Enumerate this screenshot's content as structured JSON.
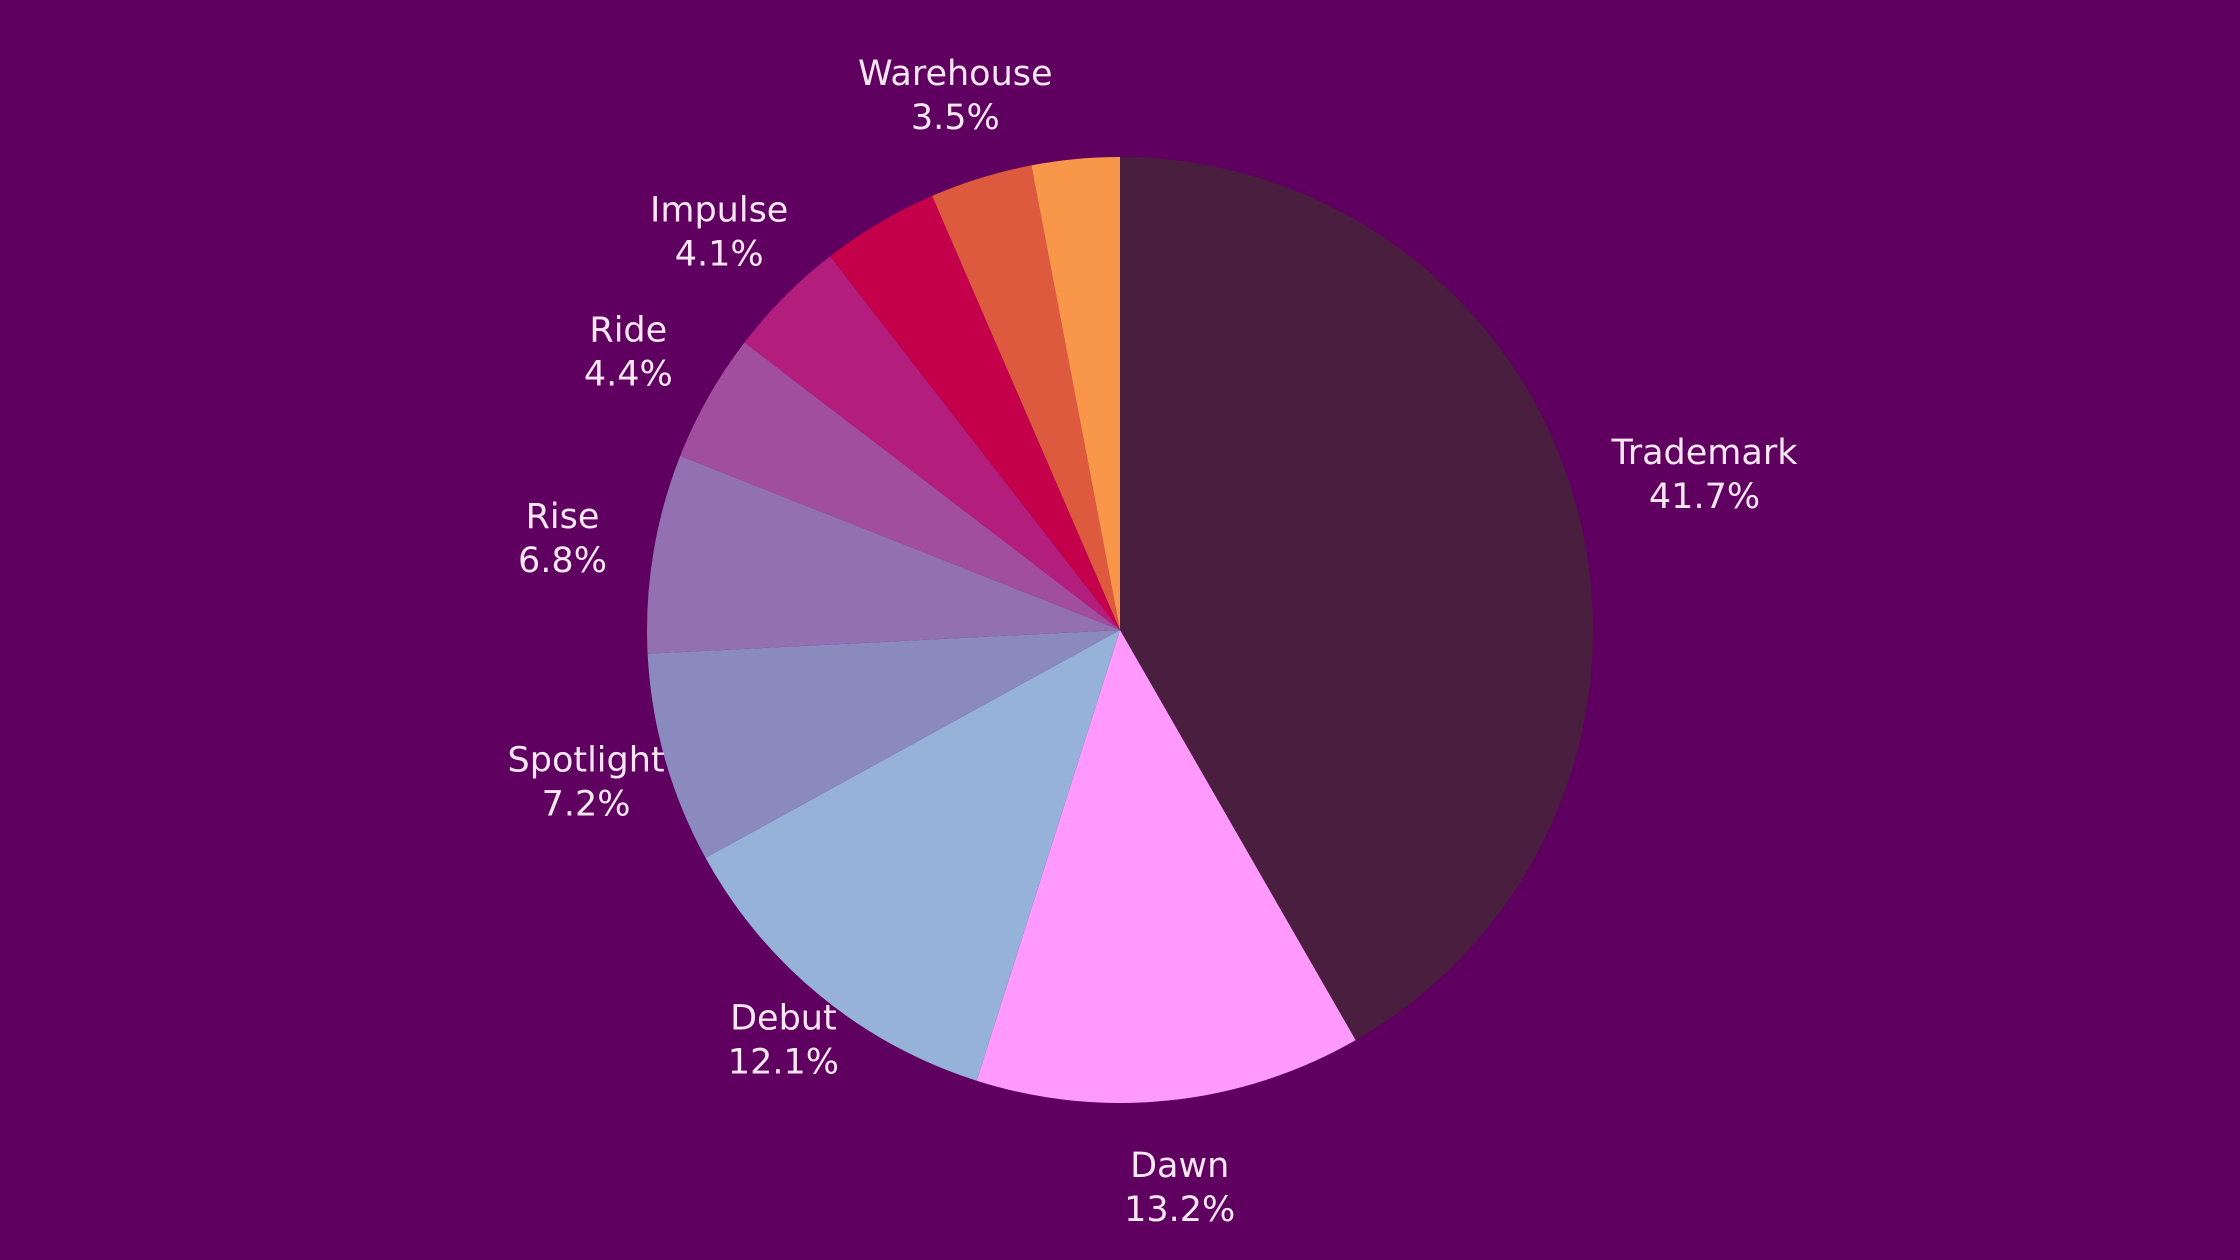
{
  "background": "#5f0060",
  "chart_data": {
    "type": "pie",
    "title": "",
    "start": "12 o'clock",
    "direction": "clockwise",
    "slices": [
      {
        "label": "Trademark",
        "value": 41.7,
        "value_label": "41.7%",
        "color": "#4a1e3e"
      },
      {
        "label": "Dawn",
        "value": 13.2,
        "value_label": "13.2%",
        "color": "#ff99ff"
      },
      {
        "label": "Debut",
        "value": 12.1,
        "value_label": "12.1%",
        "color": "#96b2d8"
      },
      {
        "label": "Spotlight",
        "value": 7.2,
        "value_label": "7.2%",
        "color": "#8a8abf"
      },
      {
        "label": "Rise",
        "value": 6.8,
        "value_label": "6.8%",
        "color": "#9270b2"
      },
      {
        "label": "Ride",
        "value": 4.4,
        "value_label": "4.4%",
        "color": "#a24e9f"
      },
      {
        "label": "Impulse",
        "value": 4.1,
        "value_label": "4.1%",
        "color": "#b31d7c"
      },
      {
        "label": "",
        "value": 4.0,
        "value_label": "",
        "color": "#c4004a"
      },
      {
        "label": "Warehouse",
        "value": 3.5,
        "value_label": "3.5%",
        "color": "#de5a3f"
      },
      {
        "label": "",
        "value": 3.0,
        "value_label": "",
        "color": "#f8974a"
      }
    ]
  }
}
